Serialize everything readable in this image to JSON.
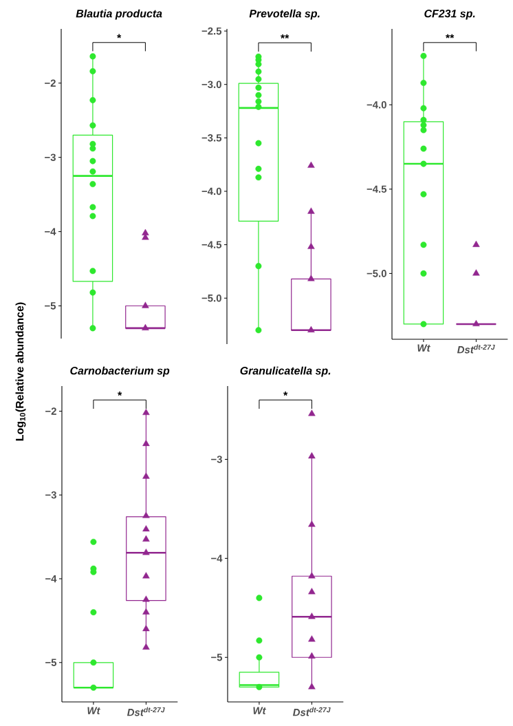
{
  "chart_data": [
    {
      "type": "box",
      "title": "Blautia producta",
      "ylabel": "Log$_{10}$(Relative abundance)",
      "categories": [
        "Wt",
        "Dst$^{dt-27J}$"
      ],
      "colors": [
        "#2ee82e",
        "#92278f"
      ],
      "ylim": [
        -5.44,
        -1.27
      ],
      "yticks": [
        {
          "value": -2,
          "label": "−2"
        },
        {
          "value": -3,
          "label": "−3"
        },
        {
          "value": -4,
          "label": "−4"
        },
        {
          "value": -5,
          "label": "−5"
        }
      ],
      "tick_labels": "y",
      "annotations": [
        "*"
      ],
      "boxes": [
        {
          "low": -5.3,
          "q1": -4.67,
          "median": -3.25,
          "q3": -2.7,
          "high": -1.64
        },
        {
          "low": -5.3,
          "q1": -5.3,
          "median": -5.3,
          "q3": -5.0,
          "high": -5.0
        }
      ],
      "series": [
        {
          "type": "scatter",
          "color": "#2ee82e",
          "marker": "circle",
          "x": [
            "Wt",
            "Wt",
            "Wt",
            "Wt",
            "Wt",
            "Wt",
            "Wt",
            "Wt",
            "Wt",
            "Wt",
            "Wt",
            "Wt",
            "Wt",
            "Wt"
          ],
          "values": [
            -1.64,
            -1.84,
            -2.23,
            -2.57,
            -2.82,
            -2.88,
            -3.05,
            -3.19,
            -3.36,
            -3.67,
            -3.79,
            -4.53,
            -4.82,
            -5.3
          ]
        },
        {
          "type": "scatter",
          "color": "#92278f",
          "marker": "triangle",
          "x": [
            "Dst$^{dt-27J}$",
            "Dst$^{dt-27J}$",
            "Dst$^{dt-27J}$",
            "Dst$^{dt-27J}$"
          ],
          "values": [
            -4.02,
            -4.08,
            -5.0,
            -5.3
          ]
        }
      ]
    },
    {
      "type": "box",
      "title": "Prevotella sp.",
      "categories": [
        "Wt",
        "Dst$^{dt-27J}$"
      ],
      "colors": [
        "#2ee82e",
        "#92278f"
      ],
      "ylim": [
        -5.43,
        -2.48
      ],
      "yticks": [
        {
          "value": -2.5,
          "label": "−2.5"
        },
        {
          "value": -3.0,
          "label": "−3.0"
        },
        {
          "value": -3.5,
          "label": "−3.5"
        },
        {
          "value": -4.0,
          "label": "−4.0"
        },
        {
          "value": -4.5,
          "label": "−4.5"
        },
        {
          "value": -5.0,
          "label": "−5.0"
        }
      ],
      "tick_labels": "y",
      "annotations": [
        "**"
      ],
      "boxes": [
        {
          "low": -5.3,
          "q1": -4.28,
          "median": -3.22,
          "q3": -2.99,
          "high": -2.74
        },
        {
          "low": -5.3,
          "q1": -5.3,
          "median": -5.3,
          "q3": -4.82,
          "high": -4.19
        }
      ],
      "series": [
        {
          "type": "scatter",
          "color": "#2ee82e",
          "marker": "circle",
          "x": [
            "Wt",
            "Wt",
            "Wt",
            "Wt",
            "Wt",
            "Wt",
            "Wt",
            "Wt",
            "Wt",
            "Wt",
            "Wt",
            "Wt",
            "Wt",
            "Wt"
          ],
          "values": [
            -2.74,
            -2.77,
            -2.81,
            -2.88,
            -2.95,
            -3.03,
            -3.1,
            -3.16,
            -3.21,
            -3.55,
            -3.79,
            -3.87,
            -4.7,
            -5.3
          ]
        },
        {
          "type": "scatter",
          "color": "#92278f",
          "marker": "triangle",
          "x": [
            "Dst$^{dt-27J}$",
            "Dst$^{dt-27J}$",
            "Dst$^{dt-27J}$",
            "Dst$^{dt-27J}$",
            "Dst$^{dt-27J}$"
          ],
          "values": [
            -3.76,
            -4.19,
            -4.52,
            -4.82,
            -5.3
          ]
        }
      ]
    },
    {
      "type": "box",
      "title": "CF231 sp.",
      "categories": [
        "Wt",
        "Dst$^{dt-27J}$"
      ],
      "colors": [
        "#2ee82e",
        "#92278f"
      ],
      "ylim": [
        -5.39,
        -3.55
      ],
      "yticks": [
        {
          "value": -4.0,
          "label": "−4.0"
        },
        {
          "value": -4.5,
          "label": "−4.5"
        },
        {
          "value": -5.0,
          "label": "−5.0"
        }
      ],
      "annotations": [
        "**"
      ],
      "boxes": [
        {
          "low": -5.3,
          "q1": -5.3,
          "median": -4.35,
          "q3": -4.1,
          "high": -3.71
        },
        {
          "low": -5.3,
          "q1": -5.3,
          "median": -5.3,
          "q3": -5.3,
          "high": -5.3
        }
      ],
      "series": [
        {
          "type": "scatter",
          "color": "#2ee82e",
          "marker": "circle",
          "x": [
            "Wt",
            "Wt",
            "Wt",
            "Wt",
            "Wt",
            "Wt",
            "Wt",
            "Wt",
            "Wt",
            "Wt",
            "Wt",
            "Wt"
          ],
          "values": [
            -3.71,
            -3.87,
            -4.02,
            -4.09,
            -4.12,
            -4.15,
            -4.26,
            -4.35,
            -4.53,
            -4.83,
            -5.0,
            -5.3
          ]
        },
        {
          "type": "scatter",
          "color": "#92278f",
          "marker": "triangle",
          "x": [
            "Dst$^{dt-27J}$",
            "Dst$^{dt-27J}$",
            "Dst$^{dt-27J}$"
          ],
          "values": [
            -4.83,
            -5.0,
            -5.3
          ]
        }
      ]
    },
    {
      "type": "box",
      "title": "Carnobacterium sp",
      "categories": [
        "Wt",
        "Dst$^{dt-27J}$"
      ],
      "colors": [
        "#2ee82e",
        "#92278f"
      ],
      "ylim": [
        -5.47,
        -1.7
      ],
      "yticks": [
        {
          "value": -2,
          "label": "−2"
        },
        {
          "value": -3,
          "label": "−3"
        },
        {
          "value": -4,
          "label": "−4"
        },
        {
          "value": -5,
          "label": "−5"
        }
      ],
      "annotations": [
        "*"
      ],
      "boxes": [
        {
          "low": -5.3,
          "q1": -5.3,
          "median": -5.3,
          "q3": -5.0,
          "high": -5.0
        },
        {
          "low": -4.82,
          "q1": -4.26,
          "median": -3.69,
          "q3": -3.26,
          "high": -2.02
        }
      ],
      "series": [
        {
          "type": "scatter",
          "color": "#2ee82e",
          "marker": "circle",
          "x": [
            "Wt",
            "Wt",
            "Wt",
            "Wt",
            "Wt",
            "Wt"
          ],
          "values": [
            -3.56,
            -3.88,
            -3.92,
            -4.4,
            -5.0,
            -5.3
          ]
        },
        {
          "type": "scatter",
          "color": "#92278f",
          "marker": "triangle",
          "x": [
            "Dst$^{dt-27J}$",
            "Dst$^{dt-27J}$",
            "Dst$^{dt-27J}$",
            "Dst$^{dt-27J}$",
            "Dst$^{dt-27J}$",
            "Dst$^{dt-27J}$",
            "Dst$^{dt-27J}$",
            "Dst$^{dt-27J}$",
            "Dst$^{dt-27J}$",
            "Dst$^{dt-27J}$",
            "Dst$^{dt-27J}$",
            "Dst$^{dt-27J}$"
          ],
          "values": [
            -2.02,
            -2.39,
            -2.78,
            -3.25,
            -3.41,
            -3.53,
            -3.69,
            -3.97,
            -4.25,
            -4.4,
            -4.6,
            -4.82
          ]
        }
      ]
    },
    {
      "type": "box",
      "title": "Granulicatella sp.",
      "categories": [
        "Wt",
        "Dst$^{dt-27J}$"
      ],
      "colors": [
        "#2ee82e",
        "#92278f"
      ],
      "ylim": [
        -5.45,
        -2.26
      ],
      "yticks": [
        {
          "value": -3,
          "label": "−3"
        },
        {
          "value": -4,
          "label": "−4"
        },
        {
          "value": -5,
          "label": "−5"
        }
      ],
      "annotations": [
        "*"
      ],
      "boxes": [
        {
          "low": -5.3,
          "q1": -5.3,
          "median": -5.28,
          "q3": -5.15,
          "high": -5.0
        },
        {
          "low": -5.3,
          "q1": -5.0,
          "median": -4.59,
          "q3": -4.18,
          "high": -2.97
        }
      ],
      "series": [
        {
          "type": "scatter",
          "color": "#2ee82e",
          "marker": "circle",
          "x": [
            "Wt",
            "Wt",
            "Wt",
            "Wt"
          ],
          "values": [
            -4.4,
            -4.83,
            -5.0,
            -5.3
          ]
        },
        {
          "type": "scatter",
          "color": "#92278f",
          "marker": "triangle",
          "x": [
            "Dst$^{dt-27J}$",
            "Dst$^{dt-27J}$",
            "Dst$^{dt-27J}$",
            "Dst$^{dt-27J}$",
            "Dst$^{dt-27J}$",
            "Dst$^{dt-27J}$",
            "Dst$^{dt-27J}$",
            "Dst$^{dt-27J}$",
            "Dst$^{dt-27J}$"
          ],
          "values": [
            -2.54,
            -2.97,
            -3.66,
            -4.18,
            -4.34,
            -4.59,
            -4.82,
            -4.99,
            -5.3
          ]
        }
      ]
    }
  ]
}
